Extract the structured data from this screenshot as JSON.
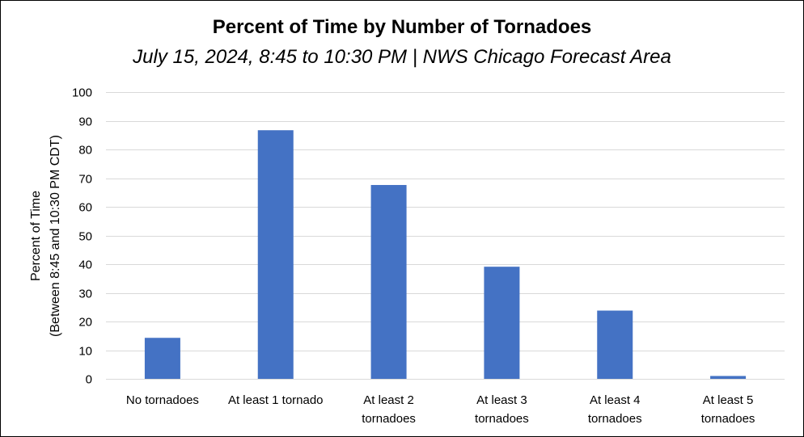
{
  "chart_data": {
    "type": "bar",
    "title": "Percent of Time by Number of Tornadoes",
    "subtitle": "July 15, 2024, 8:45 to 10:30 PM | NWS Chicago Forecast Area",
    "ylabel": [
      "Percent of Time",
      "(Between 8:45 and 10:30 PM CDT)"
    ],
    "xlabel": "",
    "categories": [
      [
        "No tornadoes"
      ],
      [
        "At least 1 tornado"
      ],
      [
        "At least 2",
        "tornadoes"
      ],
      [
        "At least 3",
        "tornadoes"
      ],
      [
        "At least 4",
        "tornadoes"
      ],
      [
        "At least 5",
        "tornadoes"
      ]
    ],
    "values": [
      14.3,
      86.7,
      67.6,
      39.1,
      23.8,
      1.0
    ],
    "ylim": [
      0,
      100
    ],
    "yticks": [
      0,
      10,
      20,
      30,
      40,
      50,
      60,
      70,
      80,
      90,
      100
    ],
    "grid": true,
    "legend": "none",
    "colors": {
      "bar": "#4472C4",
      "grid": "#D9D9D9",
      "axis": "#D9D9D9"
    }
  }
}
